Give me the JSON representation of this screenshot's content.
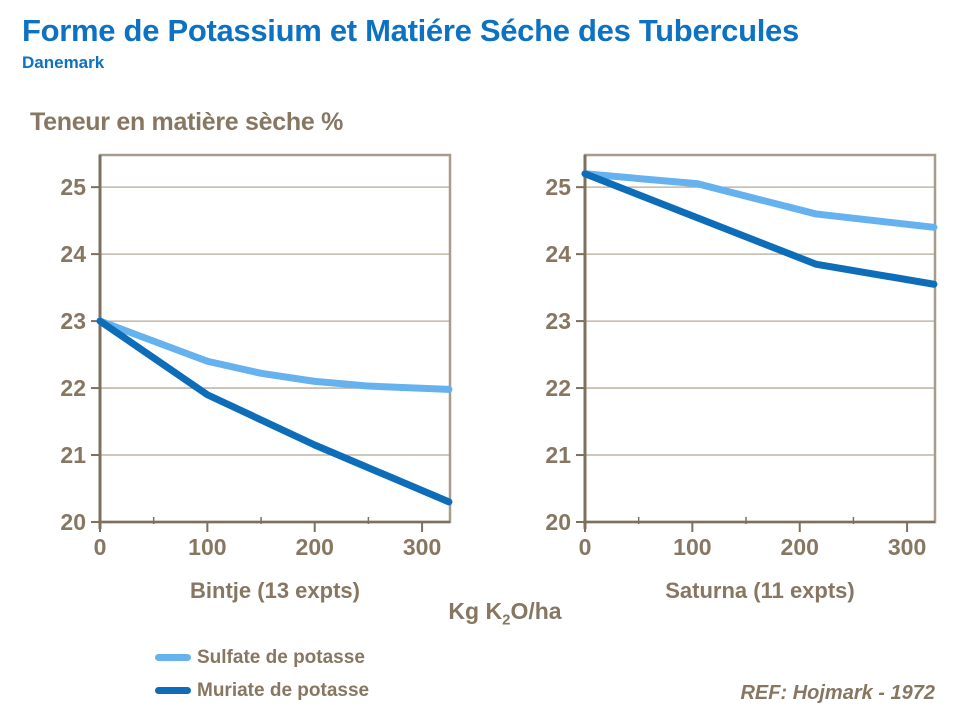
{
  "header": {
    "title": "Forme de Potassium et Matiére Séche des Tubercules",
    "subtitle": "Danemark"
  },
  "y_axis_label": "Teneur en matière sèche %",
  "x_axis_title": {
    "prefix": "Kg K",
    "sub": "2",
    "suffix": "O/ha"
  },
  "legend": [
    {
      "label": "Sulfate de potasse",
      "color": "#66b2ee"
    },
    {
      "label": "Muriate de potasse",
      "color": "#0d6db8"
    }
  ],
  "reference": "REF: Hojmark - 1972",
  "colors": {
    "title_blue": "#0d72c2",
    "brown_text": "#877762",
    "axis": "#7c705e",
    "box": "#a89b8a",
    "grid": "#b5a898",
    "sulfate": "#66b2ee",
    "muriate": "#0d6db8"
  },
  "chart_data": [
    {
      "type": "line",
      "title": "Bintje (13 expts)",
      "xlabel": "Kg K2O/ha",
      "ylabel": "Teneur en matière sèche %",
      "xlim": [
        0,
        326
      ],
      "ylim": [
        20,
        25.48
      ],
      "y_ticks": [
        20,
        21,
        22,
        23,
        24,
        25
      ],
      "x_major_ticks": [
        0,
        100,
        200,
        300
      ],
      "x_minor_ticks": [
        50,
        150,
        250
      ],
      "grid": "horizontal",
      "series": [
        {
          "name": "Sulfate de potasse",
          "color_key": "sulfate",
          "points": [
            [
              0,
              23.0
            ],
            [
              100,
              22.4
            ],
            [
              150,
              22.22
            ],
            [
              200,
              22.1
            ],
            [
              250,
              22.03
            ],
            [
              325,
              21.98
            ]
          ]
        },
        {
          "name": "Muriate de potasse",
          "color_key": "muriate",
          "points": [
            [
              0,
              23.0
            ],
            [
              100,
              21.9
            ],
            [
              200,
              21.15
            ],
            [
              325,
              20.3
            ]
          ]
        }
      ]
    },
    {
      "type": "line",
      "title": "Saturna (11 expts)",
      "xlabel": "Kg K2O/ha",
      "ylabel": "Teneur en matière sèche %",
      "xlim": [
        0,
        326
      ],
      "ylim": [
        20,
        25.48
      ],
      "y_ticks": [
        20,
        21,
        22,
        23,
        24,
        25
      ],
      "x_major_ticks": [
        0,
        100,
        200,
        300
      ],
      "x_minor_ticks": [
        50,
        150,
        250
      ],
      "grid": "horizontal",
      "series": [
        {
          "name": "Sulfate de potasse",
          "color_key": "sulfate",
          "points": [
            [
              0,
              25.2
            ],
            [
              105,
              25.05
            ],
            [
              215,
              24.6
            ],
            [
              325,
              24.4
            ]
          ]
        },
        {
          "name": "Muriate de potasse",
          "color_key": "muriate",
          "points": [
            [
              0,
              25.2
            ],
            [
              215,
              23.85
            ],
            [
              325,
              23.55
            ]
          ]
        }
      ]
    }
  ]
}
